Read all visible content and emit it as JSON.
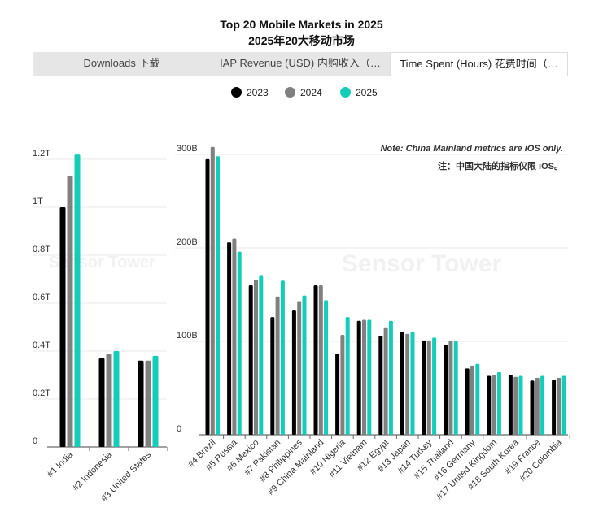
{
  "title": "Top 20 Mobile Markets in 2025",
  "subtitle": "2025年20大移动市场",
  "tabs": [
    {
      "label": "Downloads  下载",
      "active": false
    },
    {
      "label": "IAP Revenue (USD)  内购收入（…",
      "active": false
    },
    {
      "label": "Time Spent (Hours)  花费时间（…",
      "active": true
    }
  ],
  "legend": [
    {
      "name": "2023",
      "color": "#000000"
    },
    {
      "name": "2024",
      "color": "#808080"
    },
    {
      "name": "2025",
      "color": "#14CDB9"
    }
  ],
  "note_en": "Note: China Mainland metrics are iOS only.",
  "note_cn": "注：中国大陆的指标仅限 iOS。",
  "watermark": "Sensor Tower",
  "chart_data": [
    {
      "type": "bar",
      "categories": [
        "#1 India",
        "#2 Indonesia",
        "#3 United States"
      ],
      "series": [
        {
          "name": "2023",
          "values": [
            1.0,
            0.37,
            0.36
          ]
        },
        {
          "name": "2024",
          "values": [
            1.13,
            0.39,
            0.36
          ]
        },
        {
          "name": "2025",
          "values": [
            1.22,
            0.4,
            0.38
          ]
        }
      ],
      "yticks": [
        "0",
        "0.2T",
        "0.4T",
        "0.6T",
        "0.8T",
        "1T",
        "1.2T"
      ],
      "ylim": [
        0,
        1.2
      ],
      "grid": true
    },
    {
      "type": "bar",
      "categories": [
        "#4 Brazil",
        "#5 Russia",
        "#6 Mexico",
        "#7 Pakistan",
        "#8 Philippines",
        "#9 China Mainland",
        "#10 Nigeria",
        "#11 Vietnam",
        "#12 Egypt",
        "#13 Japan",
        "#14 Turkey",
        "#15 Thailand",
        "#16 Germany",
        "#17 United Kingdom",
        "#18 South Korea",
        "#19 France",
        "#20 Colombia"
      ],
      "series": [
        {
          "name": "2023",
          "values": [
            295,
            206,
            160,
            126,
            133,
            160,
            87,
            122,
            106,
            110,
            101,
            96,
            71,
            63,
            64,
            58,
            59
          ]
        },
        {
          "name": "2024",
          "values": [
            308,
            210,
            166,
            148,
            143,
            160,
            107,
            123,
            115,
            108,
            101,
            101,
            74,
            64,
            62,
            61,
            61
          ]
        },
        {
          "name": "2025",
          "values": [
            298,
            196,
            171,
            165,
            149,
            144,
            126,
            123,
            122,
            110,
            104,
            100,
            76,
            67,
            63,
            63,
            63
          ]
        }
      ],
      "yticks": [
        "0",
        "100B",
        "200B",
        "300B"
      ],
      "ylim": [
        0,
        300
      ],
      "grid": true
    }
  ]
}
